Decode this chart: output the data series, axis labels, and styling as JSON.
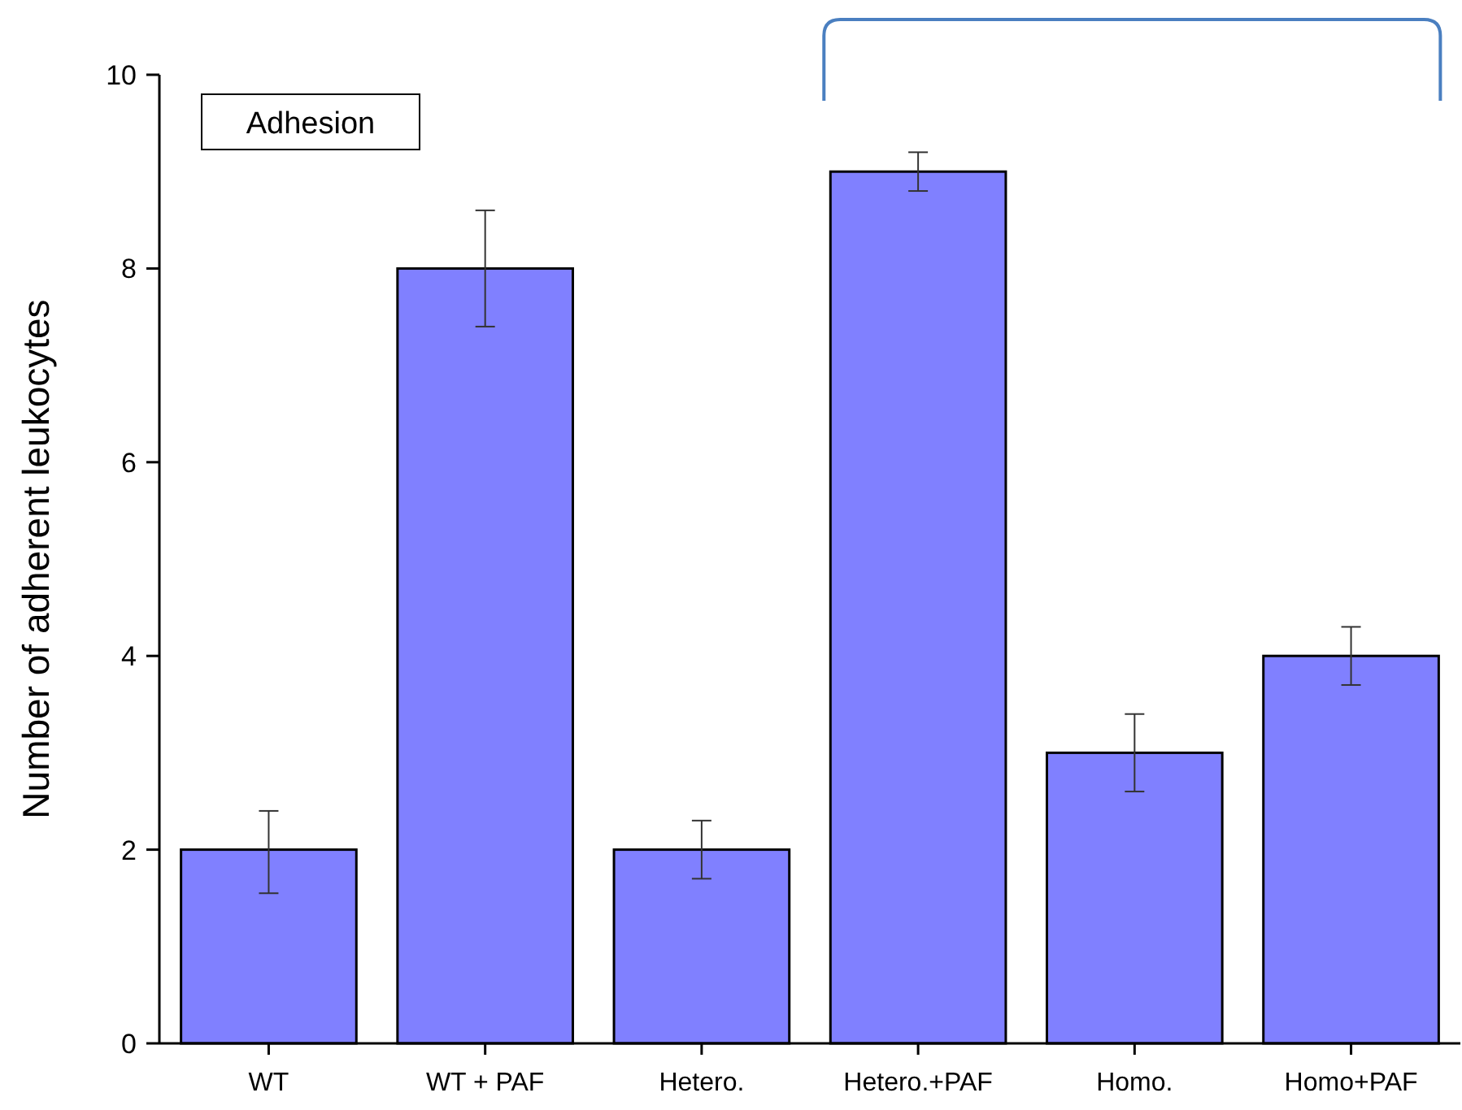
{
  "chart_data": {
    "type": "bar",
    "title": "Adhesion",
    "ylabel": "Number of adherent leukocytes",
    "categories": [
      "WT",
      "WT + PAF",
      "Hetero.",
      "Hetero.+PAF",
      "Homo.",
      "Homo+PAF"
    ],
    "values": [
      2,
      8,
      2,
      9,
      3,
      4
    ],
    "errors": [
      [
        1.55,
        2.4
      ],
      [
        7.4,
        8.6
      ],
      [
        1.7,
        2.3
      ],
      [
        8.8,
        9.2
      ],
      [
        2.6,
        3.4
      ],
      [
        3.7,
        4.3
      ]
    ],
    "color": "#8080ff",
    "ylim": [
      0,
      10
    ],
    "yticks": [
      0,
      2,
      4,
      6,
      8,
      10
    ],
    "grid": false
  }
}
